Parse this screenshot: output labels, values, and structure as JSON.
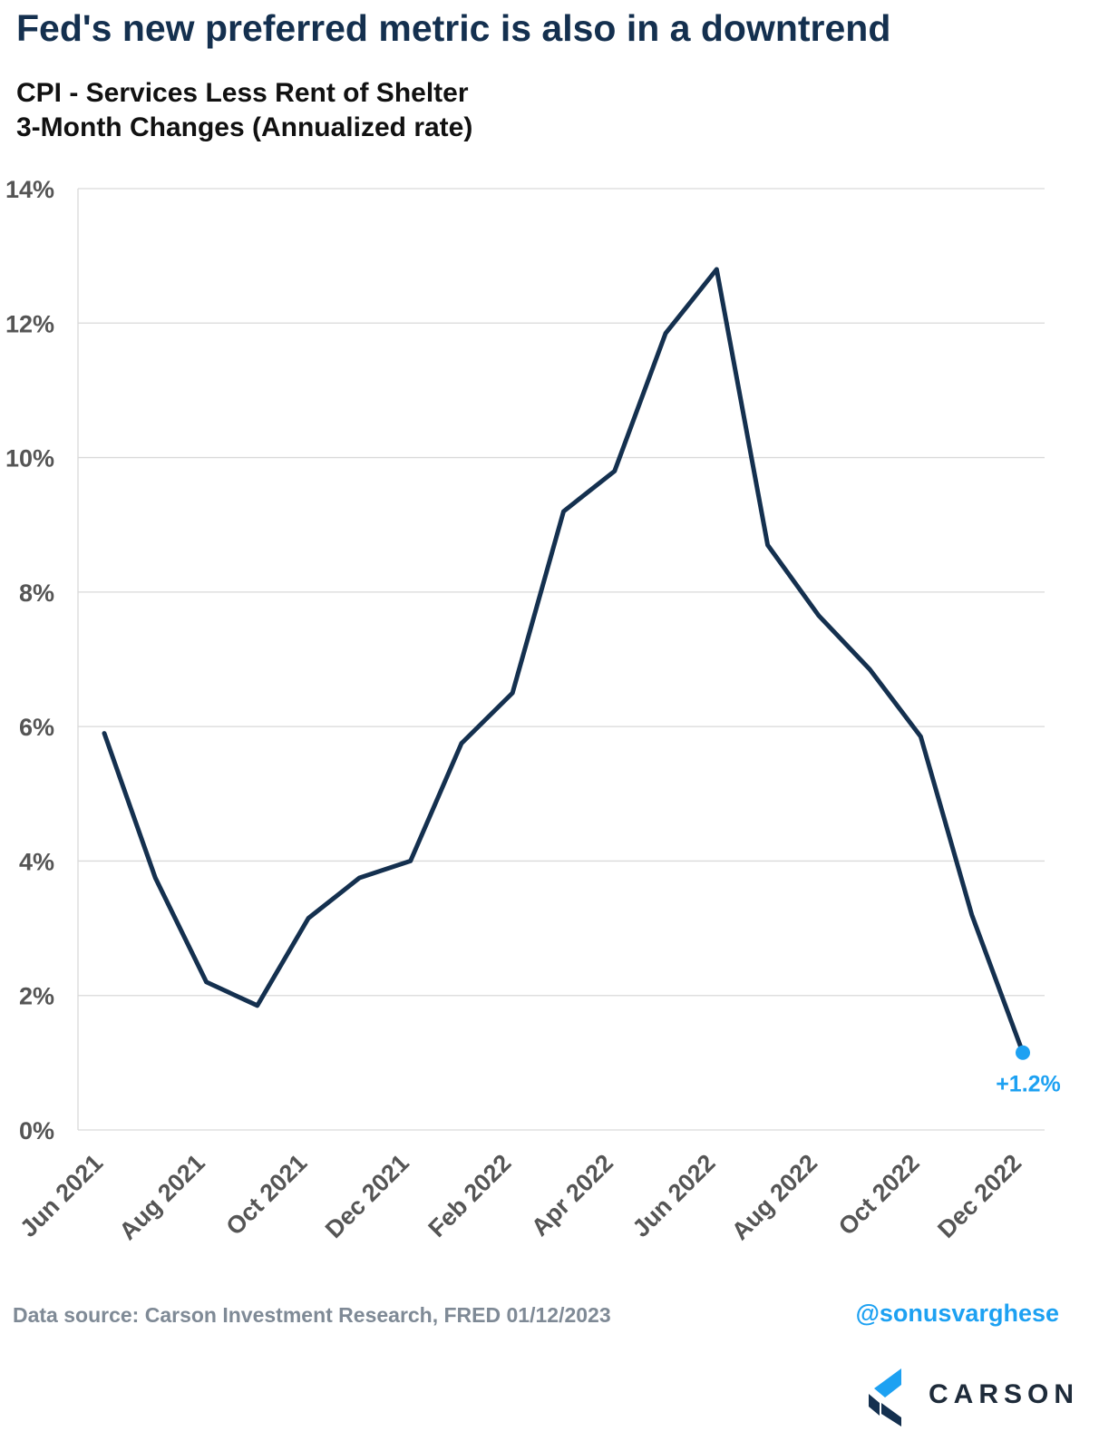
{
  "title": "Fed's new preferred metric is also in a downtrend",
  "subtitle_line1": "CPI - Services Less Rent of Shelter",
  "subtitle_line2": "3-Month Changes (Annualized rate)",
  "source": "Data source: Carson Investment Research, FRED   01/12/2023",
  "handle": "@sonusvarghese",
  "logo": {
    "text": "CARSON",
    "icon": "carson-chevron-icon",
    "colors": [
      "#1da1f2",
      "#14304f"
    ]
  },
  "colors": {
    "line": "#14304f",
    "highlight": "#1da1f2",
    "grid": "#d9d9d9",
    "tick_text": "#555555"
  },
  "chart_data": {
    "type": "line",
    "title": "CPI - Services Less Rent of Shelter 3-Month Changes (Annualized rate)",
    "xlabel": "",
    "ylabel": "",
    "ylim": [
      0,
      14
    ],
    "y_ticks": [
      0,
      2,
      4,
      6,
      8,
      10,
      12,
      14
    ],
    "y_tick_labels": [
      "0%",
      "2%",
      "4%",
      "6%",
      "8%",
      "10%",
      "12%",
      "14%"
    ],
    "x_tick_labels": [
      "Jun 2021",
      "Aug 2021",
      "Oct 2021",
      "Dec 2021",
      "Feb 2022",
      "Apr 2022",
      "Jun 2022",
      "Aug 2022",
      "Oct 2022",
      "Dec 2022"
    ],
    "grid": true,
    "x": [
      "Jun 2021",
      "Jul 2021",
      "Aug 2021",
      "Sep 2021",
      "Oct 2021",
      "Nov 2021",
      "Dec 2021",
      "Jan 2022",
      "Feb 2022",
      "Mar 2022",
      "Apr 2022",
      "May 2022",
      "Jun 2022",
      "Jul 2022",
      "Aug 2022",
      "Sep 2022",
      "Oct 2022",
      "Nov 2022",
      "Dec 2022"
    ],
    "series": [
      {
        "values": [
          5.9,
          3.75,
          2.2,
          1.85,
          3.15,
          3.75,
          4.0,
          5.75,
          6.5,
          9.2,
          9.8,
          11.85,
          12.8,
          8.7,
          7.65,
          6.85,
          5.85,
          3.2,
          1.15
        ]
      }
    ],
    "annotation": {
      "label": "+1.2%",
      "point": "Dec 2022"
    }
  }
}
